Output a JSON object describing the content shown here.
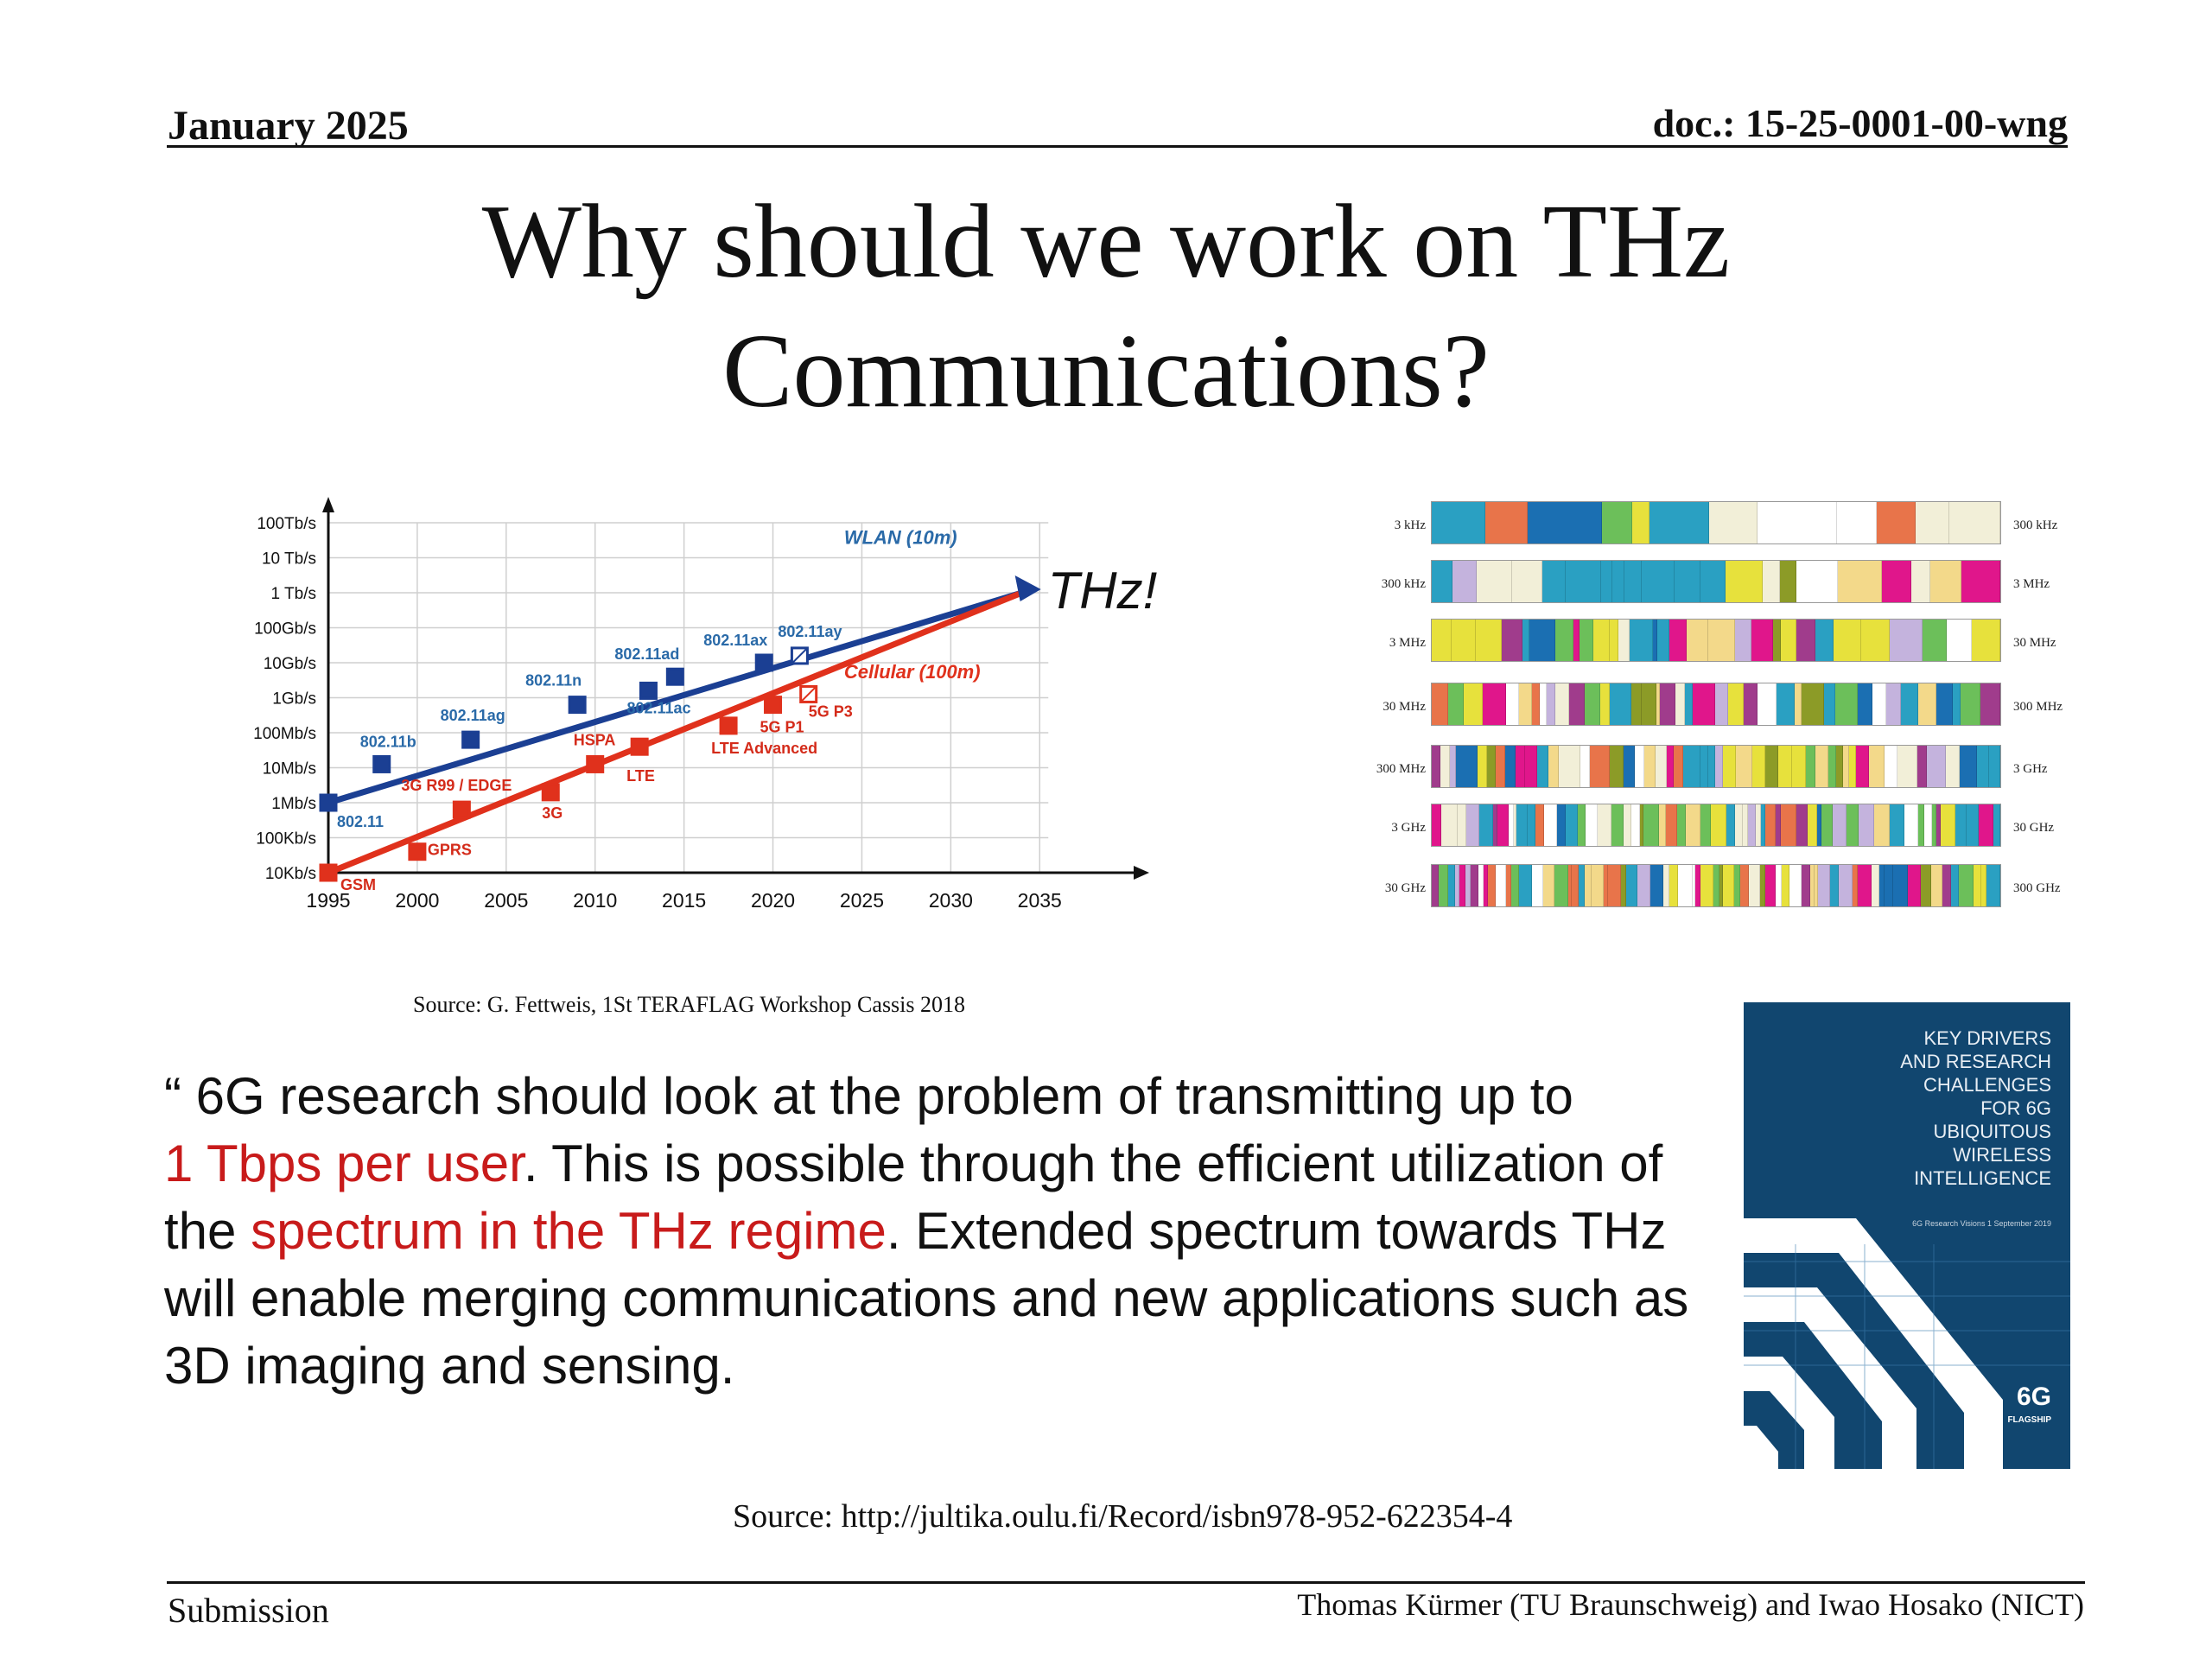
{
  "header": {
    "date": "January 2025",
    "doc": "doc.: 15-25-0001-00-wng"
  },
  "title": {
    "line1": "Why should we work on THz",
    "line2": "Communications?"
  },
  "chart_data": {
    "type": "line",
    "title": "",
    "xlabel": "",
    "ylabel": "",
    "x_ticks": [
      "1995",
      "2000",
      "2005",
      "2010",
      "2015",
      "2020",
      "2025",
      "2030",
      "2035"
    ],
    "y_ticks": [
      "10Kb/s",
      "100Kb/s",
      "1Mb/s",
      "10Mb/s",
      "100Mb/s",
      "1Gb/s",
      "10Gb/s",
      "100Gb/s",
      "1 Tb/s",
      "10 Tb/s",
      "100Tb/s"
    ],
    "xlim": [
      1995,
      2035
    ],
    "ylim_log10_bps": [
      4,
      14
    ],
    "grid": true,
    "series": [
      {
        "name": "WLAN (10m)",
        "color": "#1b3f93",
        "label_color": "#2a6aa8",
        "trend": [
          [
            1995,
            6
          ],
          [
            2034,
            12
          ]
        ],
        "points": [
          {
            "x": 1995,
            "y": 6,
            "label": "802.11"
          },
          {
            "x": 1998,
            "y": 7.1,
            "label": "802.11b"
          },
          {
            "x": 2003,
            "y": 7.8,
            "label": "802.11ag"
          },
          {
            "x": 2009,
            "y": 8.8,
            "label": "802.11n"
          },
          {
            "x": 2013,
            "y": 9.2,
            "label": "802.11ac"
          },
          {
            "x": 2014.5,
            "y": 9.6,
            "label": "802.11ad"
          },
          {
            "x": 2019.5,
            "y": 10.0,
            "label": "802.11ax"
          },
          {
            "x": 2021.5,
            "y": 10.2,
            "label": "802.11ay"
          }
        ]
      },
      {
        "name": "Cellular (100m)",
        "color": "#e0311c",
        "label_color": "#d42b1a",
        "trend": [
          [
            1995,
            4
          ],
          [
            2034,
            12
          ]
        ],
        "points": [
          {
            "x": 1995,
            "y": 4,
            "label": "GSM"
          },
          {
            "x": 2000,
            "y": 4.6,
            "label": "GPRS"
          },
          {
            "x": 2002.5,
            "y": 5.8,
            "label": "3G R99 / EDGE"
          },
          {
            "x": 2007.5,
            "y": 6.3,
            "label": "3G"
          },
          {
            "x": 2010,
            "y": 7.1,
            "label": "HSPA"
          },
          {
            "x": 2012.5,
            "y": 7.6,
            "label": "LTE"
          },
          {
            "x": 2017.5,
            "y": 8.2,
            "label": "LTE Advanced"
          },
          {
            "x": 2020,
            "y": 8.8,
            "label": "5G P1"
          },
          {
            "x": 2022,
            "y": 9.1,
            "label": "5G P3"
          }
        ]
      }
    ],
    "annotation": "THz!"
  },
  "spectrum": {
    "bands": [
      {
        "left": "3 kHz",
        "right": "300 kHz"
      },
      {
        "left": "300 kHz",
        "right": "3 MHz"
      },
      {
        "left": "3 MHz",
        "right": "30 MHz"
      },
      {
        "left": "30 MHz",
        "right": "300 MHz"
      },
      {
        "left": "300 MHz",
        "right": "3 GHz"
      },
      {
        "left": "3 GHz",
        "right": "30 GHz"
      },
      {
        "left": "30 GHz",
        "right": "300 GHz"
      }
    ],
    "colors": [
      "#e0168b",
      "#2aa0c2",
      "#f2efd8",
      "#8c9b27",
      "#c4b3dd",
      "#e7e13c",
      "#e8744a",
      "#1b6fb2",
      "#f3d98a",
      "#6cbf5a",
      "#a03c8c",
      "#ffffff"
    ]
  },
  "source1": "Source: G. Fettweis, 1St TERAFLAG Workshop Cassis 2018",
  "quote": {
    "p1": "“ 6G research should look at the problem of transmitting up to",
    "r1": "1 Tbps per user",
    "p2": ". This is possible through the efficient utilization of the ",
    "r2": "spectrum in the THz regime",
    "p3": ". Extended spectrum towards THz will enable merging communications and new applications such as 3D imaging and sensing."
  },
  "cover": {
    "title_lines": [
      "KEY DRIVERS",
      "AND RESEARCH",
      "CHALLENGES",
      "FOR 6G",
      "UBIQUITOUS",
      "WIRELESS",
      "INTELLIGENCE"
    ],
    "subtitle": "6G Research Visions 1 September 2019",
    "logo": "6G",
    "logo_sub": "FLAGSHIP"
  },
  "source2": "Source: http://jultika.oulu.fi/Record/isbn978-952-622354-4",
  "footer": {
    "left": "Submission",
    "right": "Thomas Kürmer (TU Braunschweig) and Iwao Hosako (NICT)"
  }
}
